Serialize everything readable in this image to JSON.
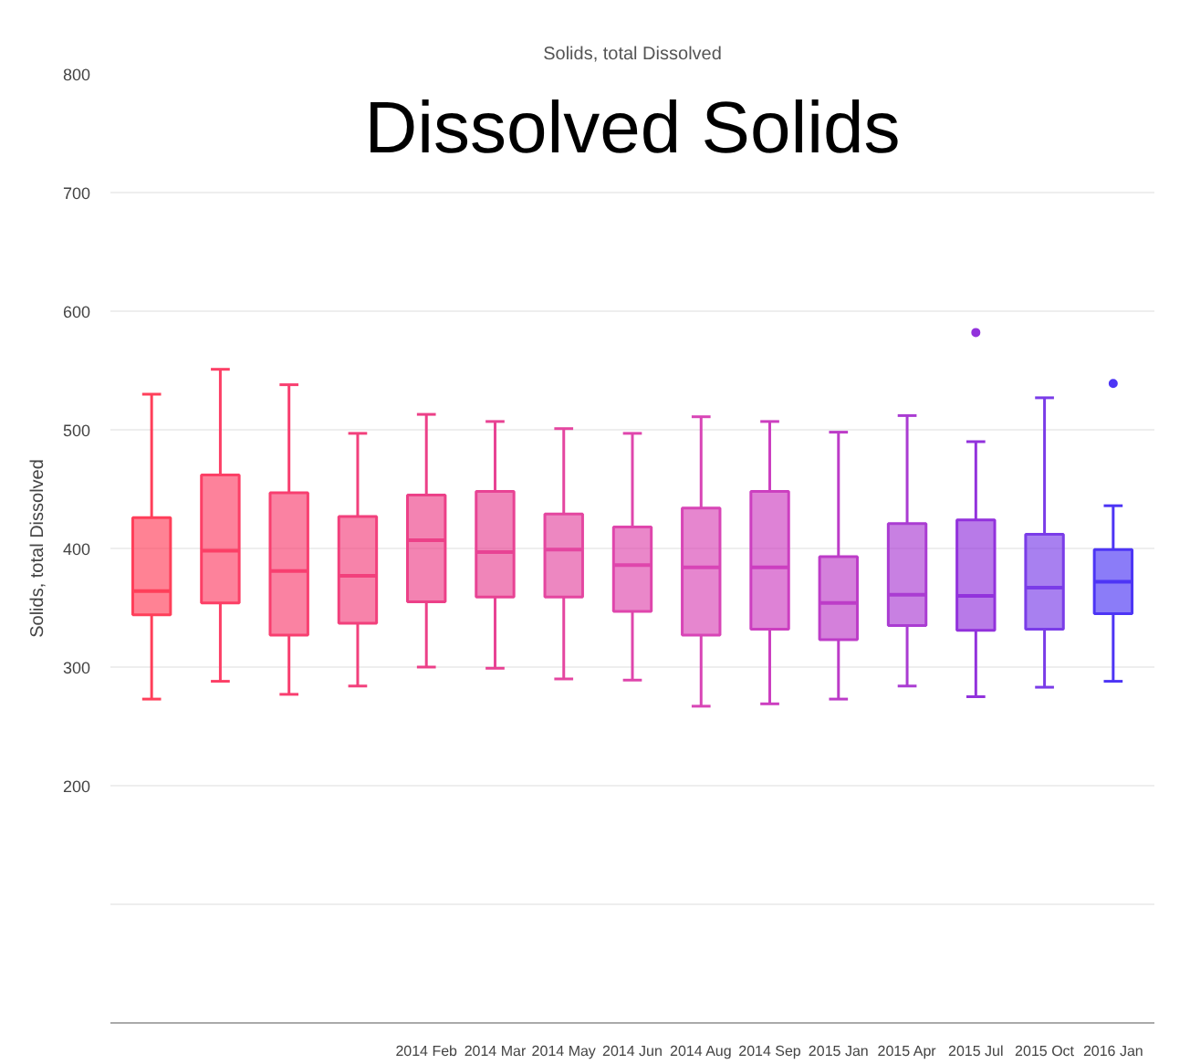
{
  "chart_data": {
    "type": "box",
    "title": "Solids, total Dissolved",
    "ylabel": "Solids, total Dissolved",
    "annotations": [
      "Dissolved Solids"
    ],
    "categories": [
      null,
      null,
      null,
      null,
      "2014 Feb",
      "2014 Mar",
      "2014 May",
      "2014 Jun",
      "2014 Aug",
      "2014 Sep",
      "2015 Jan",
      "2015 Apr",
      "2015 Jul",
      "2015 Oct",
      "2016 Jan"
    ],
    "colors": [
      "#ff3f5a",
      "#fc3f66",
      "#f83f70",
      "#f2407c",
      "#ec4088",
      "#e84394",
      "#e446a0",
      "#df46ac",
      "#d845b6",
      "#cc3fc0",
      "#bd3cc8",
      "#aa3cd2",
      "#9232dc",
      "#7a3ce8",
      "#4d35f5"
    ],
    "boxes": [
      {
        "low": 273,
        "q1": 344,
        "median": 364,
        "q3": 426,
        "high": 530
      },
      {
        "low": 288,
        "q1": 354,
        "median": 398,
        "q3": 462,
        "high": 551
      },
      {
        "low": 277,
        "q1": 327,
        "median": 381,
        "q3": 447,
        "high": 538
      },
      {
        "low": 284,
        "q1": 337,
        "median": 377,
        "q3": 427,
        "high": 497
      },
      {
        "low": 300,
        "q1": 355,
        "median": 407,
        "q3": 445,
        "high": 513
      },
      {
        "low": 299,
        "q1": 359,
        "median": 397,
        "q3": 448,
        "high": 507
      },
      {
        "low": 290,
        "q1": 359,
        "median": 399,
        "q3": 429,
        "high": 501
      },
      {
        "low": 289,
        "q1": 347,
        "median": 386,
        "q3": 418,
        "high": 497
      },
      {
        "low": 267,
        "q1": 327,
        "median": 384,
        "q3": 434,
        "high": 511
      },
      {
        "low": 269,
        "q1": 332,
        "median": 384,
        "q3": 448,
        "high": 507
      },
      {
        "low": 273,
        "q1": 323,
        "median": 354,
        "q3": 393,
        "high": 498
      },
      {
        "low": 284,
        "q1": 335,
        "median": 361,
        "q3": 421,
        "high": 512
      },
      {
        "low": 275,
        "q1": 331,
        "median": 360,
        "q3": 424,
        "high": 490,
        "outliers": [
          582
        ]
      },
      {
        "low": 283,
        "q1": 332,
        "median": 367,
        "q3": 412,
        "high": 527
      },
      {
        "low": 288,
        "q1": 345,
        "median": 372,
        "q3": 399,
        "high": 436,
        "outliers": [
          539
        ]
      }
    ],
    "ylim": [
      0,
      800
    ],
    "yticks": [
      {
        "value": 0,
        "label": null
      },
      {
        "value": 100,
        "label": null
      },
      200,
      300,
      400,
      500,
      600,
      700,
      800
    ],
    "grid": "y"
  }
}
